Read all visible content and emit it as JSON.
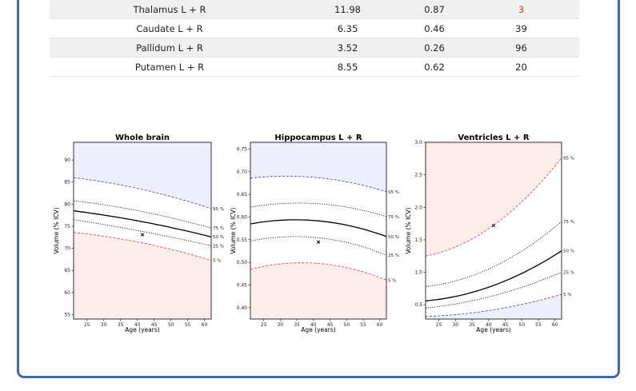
{
  "table": {
    "rows": [
      {
        "structure": "Thalamus L + R",
        "volume": "11.98",
        "percent_icv": "0.87",
        "percentile": "3",
        "flag": true
      },
      {
        "structure": "Caudate L + R",
        "volume": "6.35",
        "percent_icv": "0.46",
        "percentile": "39",
        "flag": false
      },
      {
        "structure": "Pallidum L + R",
        "volume": "3.52",
        "percent_icv": "0.26",
        "percentile": "96",
        "flag": false
      },
      {
        "structure": "Putamen L + R",
        "volume": "8.55",
        "percent_icv": "0.62",
        "percentile": "20",
        "flag": false
      }
    ]
  },
  "colors": {
    "upper_band": "#eeeefc",
    "lower_band": "#fcecec",
    "upper_line": "#3b3bd6",
    "lower_line": "#d63b3b",
    "warning": "#e53935",
    "border": "#3f6aa7"
  },
  "chart_data": [
    {
      "type": "line",
      "title": "Whole brain",
      "xlabel": "Age (years)",
      "ylabel": "Volume (% ICV)",
      "xlim": [
        21,
        62
      ],
      "ylim": [
        54,
        94
      ],
      "xticks": [
        25,
        30,
        35,
        40,
        45,
        50,
        55,
        60
      ],
      "yticks": [
        55,
        60,
        65,
        70,
        75,
        80,
        85,
        90
      ],
      "upper_shade": "blue",
      "series": [
        {
          "name": "95 %",
          "style": "dashed",
          "color": "blue",
          "x": [
            21,
            41,
            62
          ],
          "y": [
            86.0,
            83.4,
            79.0
          ]
        },
        {
          "name": "75 %",
          "style": "dotted",
          "color": "black",
          "x": [
            21,
            41,
            62
          ],
          "y": [
            80.8,
            78.4,
            74.6
          ]
        },
        {
          "name": "50 %",
          "style": "solid",
          "color": "black",
          "x": [
            21,
            41,
            62
          ],
          "y": [
            78.5,
            76.1,
            72.6
          ]
        },
        {
          "name": "25 %",
          "style": "dotted",
          "color": "black",
          "x": [
            21,
            41,
            62
          ],
          "y": [
            76.5,
            73.9,
            70.6
          ]
        },
        {
          "name": "5 %",
          "style": "dashed",
          "color": "red",
          "x": [
            21,
            41,
            62
          ],
          "y": [
            73.6,
            71.3,
            67.3
          ]
        }
      ],
      "subject": {
        "x": 41.5,
        "y": 73.1
      }
    },
    {
      "type": "line",
      "title": "Hippocampus L + R",
      "xlabel": "Age (years)",
      "ylabel": "Volume (% ICV)",
      "xlim": [
        21,
        62
      ],
      "ylim": [
        0.375,
        0.765
      ],
      "xticks": [
        25,
        30,
        35,
        40,
        45,
        50,
        55,
        60
      ],
      "yticks": [
        0.4,
        0.45,
        0.5,
        0.55,
        0.6,
        0.65,
        0.7,
        0.75
      ],
      "upper_shade": "blue",
      "series": [
        {
          "name": "95 %",
          "style": "dashed",
          "color": "blue",
          "x": [
            21,
            35,
            62
          ],
          "y": [
            0.686,
            0.69,
            0.656
          ]
        },
        {
          "name": "75 %",
          "style": "dotted",
          "color": "black",
          "x": [
            21,
            35,
            62
          ],
          "y": [
            0.622,
            0.631,
            0.601
          ]
        },
        {
          "name": "50 %",
          "style": "solid",
          "color": "black",
          "x": [
            21,
            35,
            62
          ],
          "y": [
            0.585,
            0.594,
            0.557
          ]
        },
        {
          "name": "25 %",
          "style": "dotted",
          "color": "black",
          "x": [
            21,
            35,
            62
          ],
          "y": [
            0.547,
            0.557,
            0.516
          ]
        },
        {
          "name": "5 %",
          "style": "dashed",
          "color": "red",
          "x": [
            21,
            35,
            62
          ],
          "y": [
            0.485,
            0.499,
            0.461
          ]
        }
      ],
      "subject": {
        "x": 41.5,
        "y": 0.545
      }
    },
    {
      "type": "line",
      "title": "Ventricles L + R",
      "xlabel": "Age (years)",
      "ylabel": "Volume (% ICV)",
      "xlim": [
        21,
        62
      ],
      "ylim": [
        0.28,
        3.0
      ],
      "xticks": [
        25,
        30,
        35,
        40,
        45,
        50,
        55,
        60
      ],
      "yticks": [
        0.5,
        1.0,
        1.5,
        2.0,
        2.5,
        3.0
      ],
      "upper_shade": "red",
      "series": [
        {
          "name": "95 %",
          "style": "dashed",
          "color": "red",
          "x": [
            21,
            40,
            62
          ],
          "y": [
            1.25,
            1.67,
            2.76
          ]
        },
        {
          "name": "75 %",
          "style": "dotted",
          "color": "black",
          "x": [
            21,
            40,
            62
          ],
          "y": [
            0.78,
            1.05,
            1.78
          ]
        },
        {
          "name": "50 %",
          "style": "solid",
          "color": "black",
          "x": [
            21,
            40,
            62
          ],
          "y": [
            0.56,
            0.77,
            1.33
          ]
        },
        {
          "name": "25 %",
          "style": "dotted",
          "color": "black",
          "x": [
            21,
            40,
            62
          ],
          "y": [
            0.45,
            0.62,
            1.0
          ]
        },
        {
          "name": "5 %",
          "style": "dashed",
          "color": "blue",
          "x": [
            21,
            40,
            62
          ],
          "y": [
            0.32,
            0.41,
            0.66
          ]
        }
      ],
      "subject": {
        "x": 41.5,
        "y": 1.72
      }
    }
  ]
}
